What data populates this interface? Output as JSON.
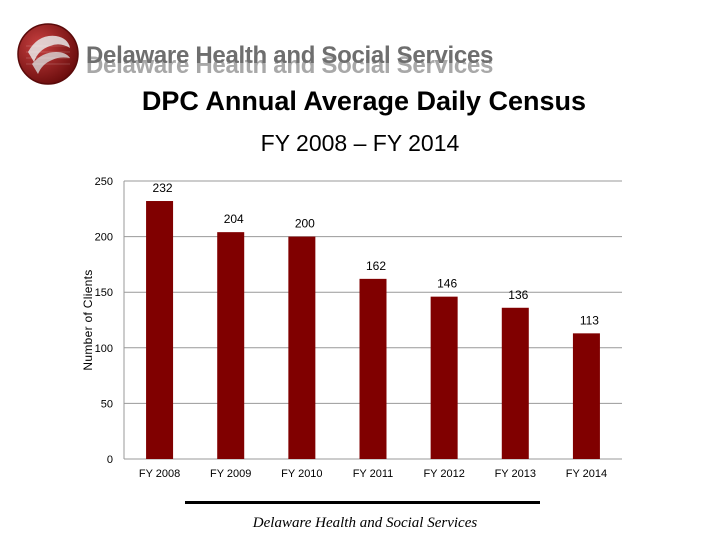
{
  "header": {
    "org_name": "Delaware Health and Social Services",
    "logo_icon": "dhss-seal-icon",
    "logo_color": "#8b1a1a"
  },
  "footer": {
    "text": "Delaware Health and Social Services"
  },
  "chart_data": {
    "type": "bar",
    "title": "DPC Annual Average Daily Census",
    "subtitle": "FY 2008 – FY 2014",
    "ylabel": "Number of Clients",
    "xlabel": "",
    "categories": [
      "FY 2008",
      "FY 2009",
      "FY 2010",
      "FY 2011",
      "FY 2012",
      "FY 2013",
      "FY 2014"
    ],
    "values": [
      232,
      204,
      200,
      162,
      146,
      136,
      113
    ],
    "value_labels": [
      "232",
      "204",
      "200",
      "162",
      "146",
      "136",
      "113"
    ],
    "ylim": [
      0,
      250
    ],
    "yticks": [
      0,
      50,
      100,
      150,
      200,
      250
    ],
    "grid": true,
    "bar_color": "#800000",
    "legend": "none"
  }
}
